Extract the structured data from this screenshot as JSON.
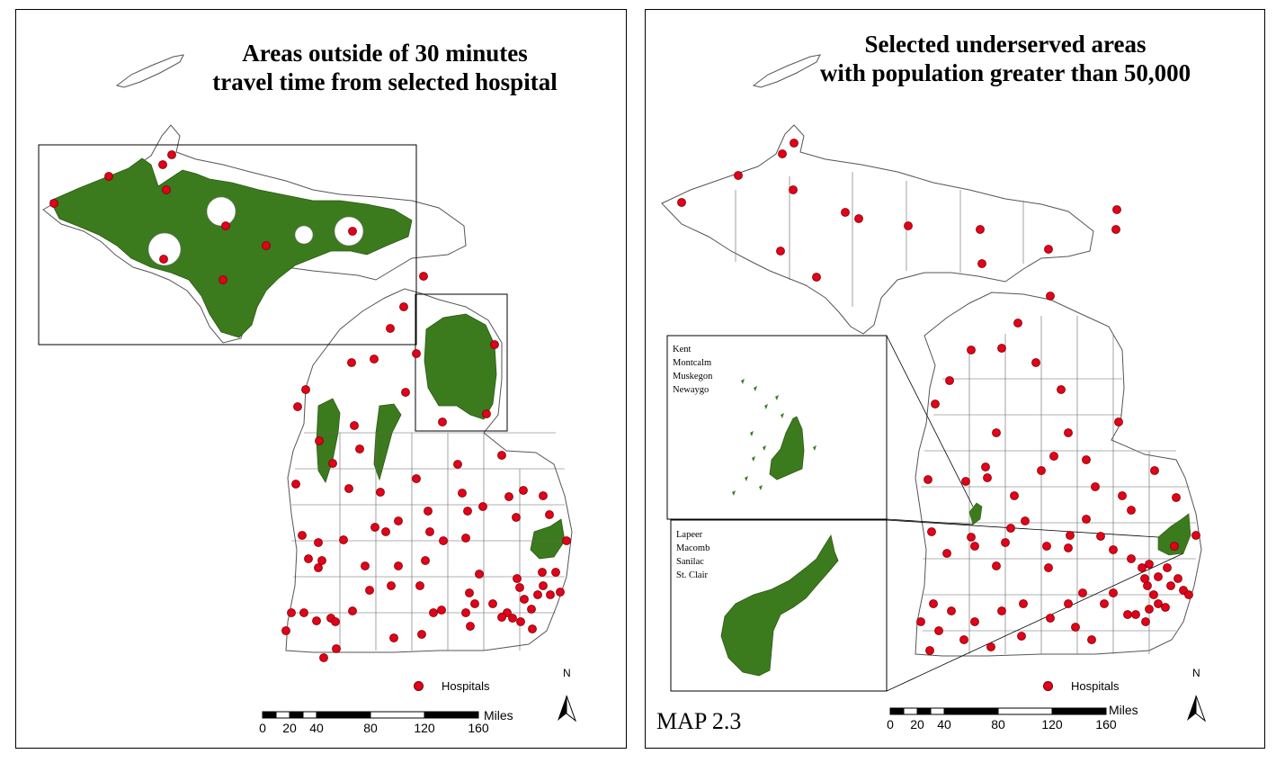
{
  "colors": {
    "underserved_area": "#3c7a1e",
    "hospital": "#e2001a",
    "county_border": "#555555",
    "frame": "#000000"
  },
  "left_map": {
    "title_line1": "Areas outside of 30 minutes",
    "title_line2": "travel time from selected hospital",
    "legend_label": "Hospitals",
    "legend_icon": "red-dot",
    "scale_unit": "Miles",
    "scale_ticks": [
      "0",
      "20",
      "40",
      "80",
      "120",
      "160"
    ],
    "north_label": "N"
  },
  "right_map": {
    "title_line1": "Selected underserved areas",
    "title_line2": "with population greater than 50,000",
    "legend_label": "Hospitals",
    "legend_icon": "red-dot",
    "scale_unit": "Miles",
    "scale_ticks": [
      "0",
      "20",
      "40",
      "80",
      "120",
      "160"
    ],
    "north_label": "N",
    "map_id": "MAP 2.3",
    "inset_west_counties": [
      "Kent",
      "Montcalm",
      "Muskegon",
      "Newaygo"
    ],
    "inset_east_counties": [
      "Lapeer",
      "Macomb",
      "Sanilac",
      "St. Clair"
    ]
  }
}
